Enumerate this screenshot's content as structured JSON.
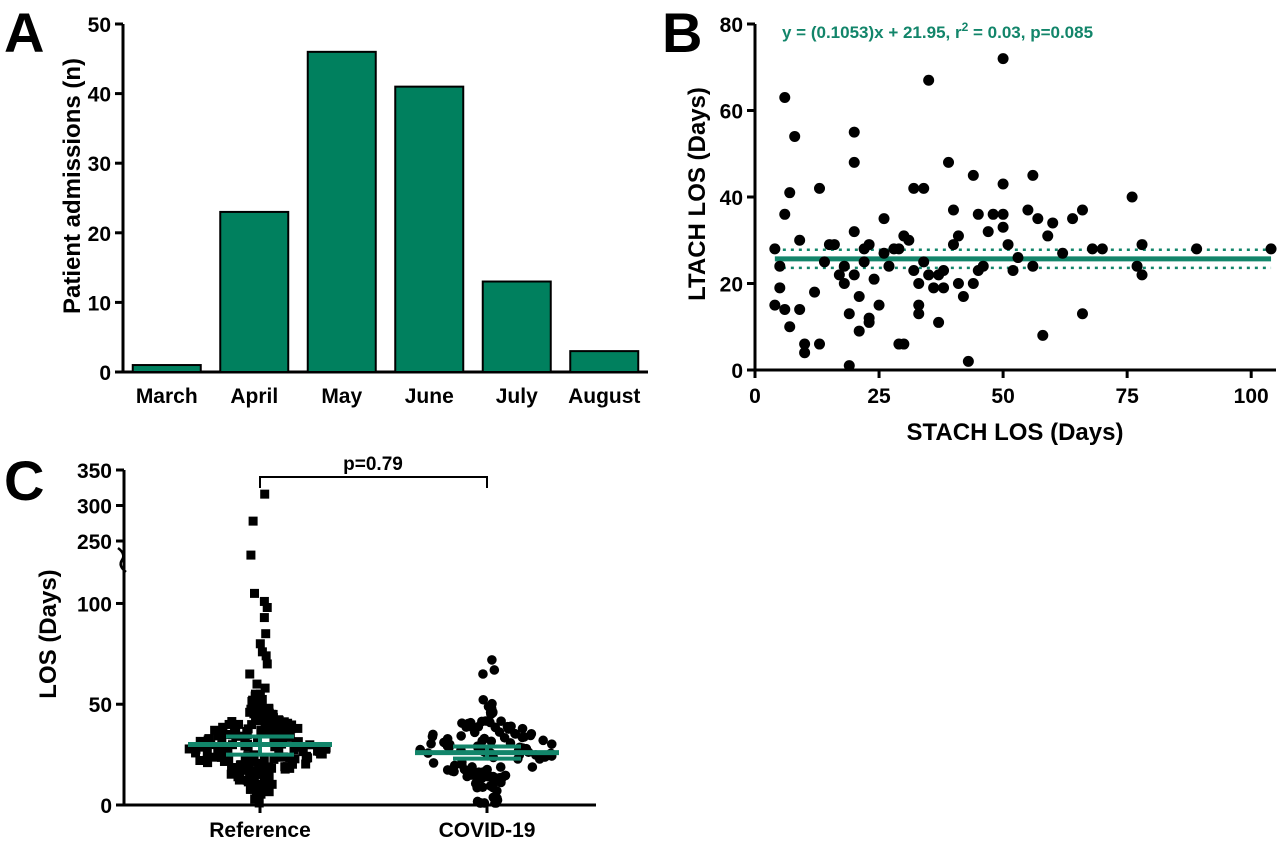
{
  "colors": {
    "accent": "#00805e",
    "fit": "#12856a",
    "ink": "#000000"
  },
  "panels": {
    "a": {
      "letter": "A"
    },
    "b": {
      "letter": "B",
      "equation_prefix": "y = (0.1053)x + 21.95, r",
      "equation_sup": "2",
      "equation_suffix": " = 0.03, p=0.085"
    },
    "c": {
      "letter": "C",
      "p_label": "p=0.79"
    }
  },
  "chart_data": [
    {
      "type": "bar",
      "categories": [
        "March",
        "April",
        "May",
        "June",
        "July",
        "August"
      ],
      "values": [
        1,
        23,
        46,
        41,
        13,
        3
      ],
      "ylabel": "Patient admissions (n)",
      "xlabel": "",
      "ylim": [
        0,
        50
      ],
      "yticks": [
        "0",
        "10",
        "20",
        "30",
        "40",
        "50"
      ],
      "grid": false,
      "color": "#00805e"
    },
    {
      "type": "scatter",
      "xlabel": "STACH LOS (Days)",
      "ylabel": "LTACH LOS (Days)",
      "xlim": [
        0,
        105
      ],
      "ylim": [
        0,
        80
      ],
      "xticks": [
        "0",
        "25",
        "50",
        "75",
        "100"
      ],
      "yticks": [
        "0",
        "20",
        "40",
        "60",
        "80"
      ],
      "grid": false,
      "fit": {
        "y_mean": 25.7,
        "ci_low": 23.6,
        "ci_high": 27.8,
        "x_range": [
          4,
          104
        ]
      },
      "points": [
        [
          4,
          28
        ],
        [
          4,
          15
        ],
        [
          5,
          24
        ],
        [
          5,
          19
        ],
        [
          6,
          14
        ],
        [
          6,
          63
        ],
        [
          6,
          36
        ],
        [
          7,
          41
        ],
        [
          7,
          10
        ],
        [
          8,
          54
        ],
        [
          9,
          30
        ],
        [
          9,
          14
        ],
        [
          10,
          6
        ],
        [
          10,
          4
        ],
        [
          12,
          18
        ],
        [
          13,
          42
        ],
        [
          13,
          6
        ],
        [
          14,
          25
        ],
        [
          15,
          29
        ],
        [
          16,
          29
        ],
        [
          17,
          22
        ],
        [
          18,
          24
        ],
        [
          18,
          20
        ],
        [
          19,
          13
        ],
        [
          19,
          1
        ],
        [
          20,
          55
        ],
        [
          20,
          48
        ],
        [
          20,
          32
        ],
        [
          20,
          22
        ],
        [
          21,
          17
        ],
        [
          21,
          9
        ],
        [
          22,
          25
        ],
        [
          22,
          28
        ],
        [
          23,
          29
        ],
        [
          23,
          11
        ],
        [
          23,
          12
        ],
        [
          24,
          21
        ],
        [
          25,
          15
        ],
        [
          26,
          35
        ],
        [
          26,
          27
        ],
        [
          27,
          24
        ],
        [
          28,
          28
        ],
        [
          29,
          28
        ],
        [
          29,
          6
        ],
        [
          30,
          31
        ],
        [
          30,
          6
        ],
        [
          31,
          30
        ],
        [
          32,
          42
        ],
        [
          32,
          23
        ],
        [
          33,
          20
        ],
        [
          33,
          15
        ],
        [
          33,
          13
        ],
        [
          34,
          42
        ],
        [
          34,
          25
        ],
        [
          35,
          67
        ],
        [
          35,
          22
        ],
        [
          36,
          19
        ],
        [
          37,
          22
        ],
        [
          37,
          11
        ],
        [
          38,
          23
        ],
        [
          38,
          19
        ],
        [
          39,
          48
        ],
        [
          40,
          37
        ],
        [
          40,
          29
        ],
        [
          41,
          31
        ],
        [
          41,
          20
        ],
        [
          42,
          17
        ],
        [
          43,
          2
        ],
        [
          44,
          45
        ],
        [
          44,
          20
        ],
        [
          45,
          23
        ],
        [
          45,
          36
        ],
        [
          46,
          24
        ],
        [
          47,
          32
        ],
        [
          48,
          36
        ],
        [
          50,
          72
        ],
        [
          50,
          36
        ],
        [
          50,
          33
        ],
        [
          50,
          43
        ],
        [
          51,
          29
        ],
        [
          52,
          23
        ],
        [
          53,
          26
        ],
        [
          55,
          37
        ],
        [
          56,
          45
        ],
        [
          56,
          24
        ],
        [
          57,
          35
        ],
        [
          58,
          8
        ],
        [
          59,
          31
        ],
        [
          60,
          34
        ],
        [
          62,
          27
        ],
        [
          64,
          35
        ],
        [
          66,
          37
        ],
        [
          66,
          13
        ],
        [
          68,
          28
        ],
        [
          70,
          28
        ],
        [
          76,
          40
        ],
        [
          77,
          24
        ],
        [
          78,
          29
        ],
        [
          78,
          22
        ],
        [
          89,
          28
        ],
        [
          104,
          28
        ]
      ],
      "equation": "y = (0.1053)x + 21.95, r2 = 0.03, p=0.085"
    },
    {
      "type": "scatter",
      "categories": [
        "Reference",
        "COVID-19"
      ],
      "ylabel": "LOS (Days)",
      "ylim": [
        0,
        350
      ],
      "axis_break": [
        130,
        250
      ],
      "yticks": [
        "0",
        "50",
        "100",
        "250",
        "300",
        "350"
      ],
      "grid": false,
      "annotation": "p=0.79",
      "series": [
        {
          "name": "Reference",
          "marker": "square",
          "median": 30,
          "iqr": [
            25,
            34
          ],
          "outliers": [
            3,
            5,
            7,
            9,
            11,
            14,
            16,
            19,
            22,
            24,
            35,
            38,
            40,
            42,
            45,
            48,
            52,
            55,
            58,
            60,
            65,
            70,
            74,
            76,
            80,
            85,
            93,
            98,
            101,
            105,
            124,
            278,
            316
          ],
          "count": 280
        },
        {
          "name": "COVID-19",
          "marker": "circle",
          "median": 26,
          "iqr": [
            23,
            29
          ],
          "values_max": 72,
          "count": 120
        }
      ]
    }
  ]
}
